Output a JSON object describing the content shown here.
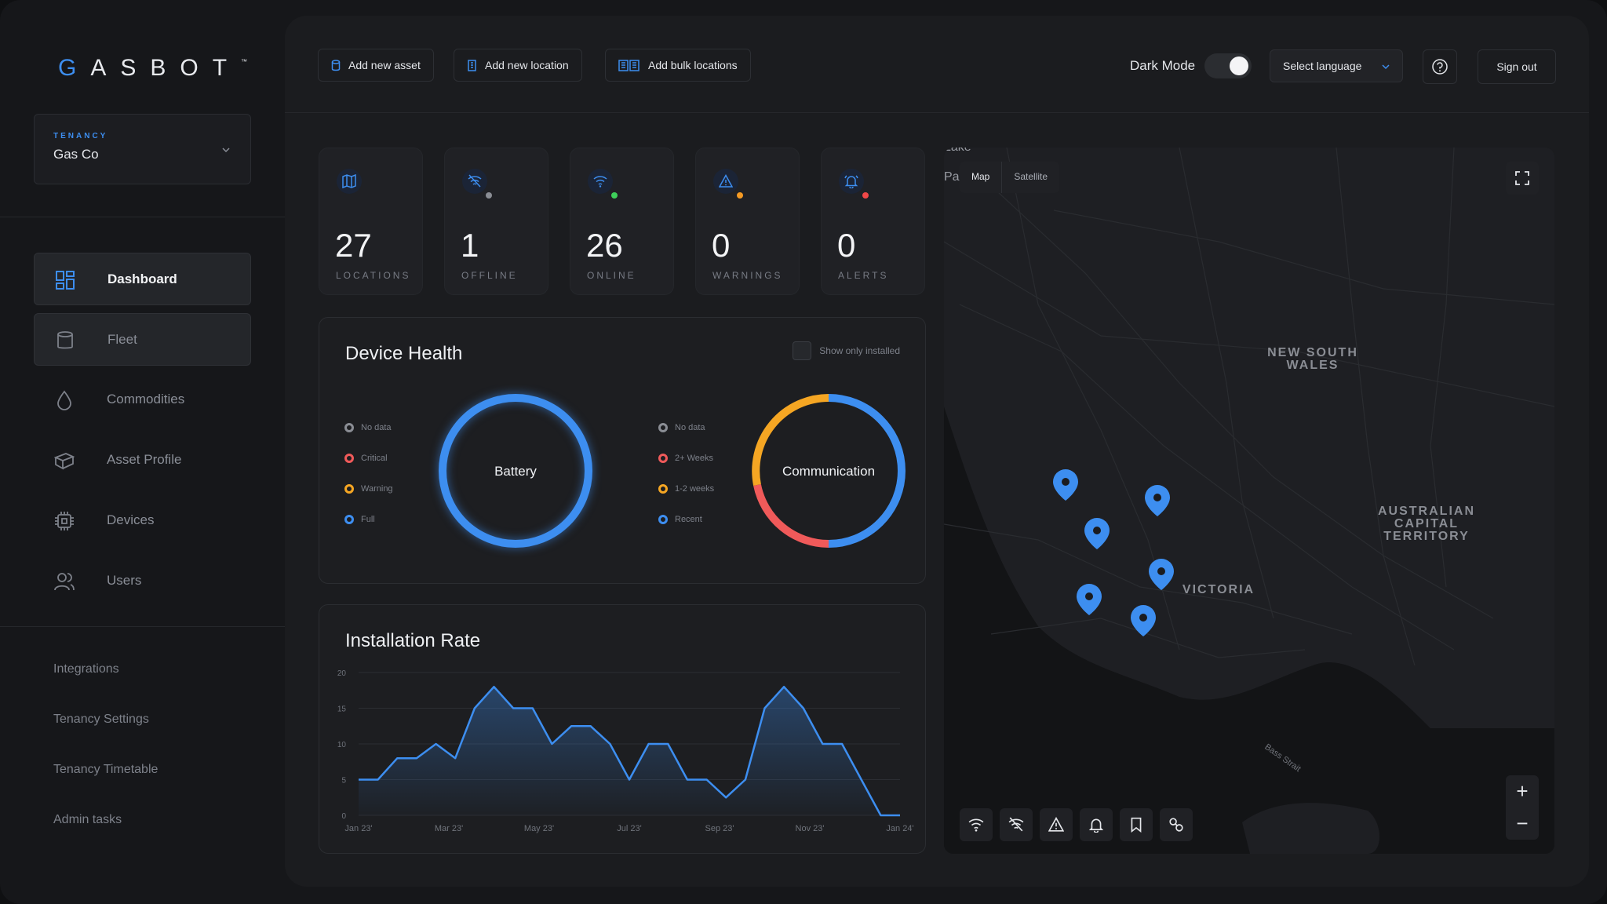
{
  "brand": {
    "logo_text": "GASBOT",
    "tm": "™",
    "accent": "#3d8ef0"
  },
  "tenancy": {
    "label": "TENANCY",
    "value": "Gas Co"
  },
  "nav": [
    {
      "label": "Dashboard",
      "icon": "grid-icon"
    },
    {
      "label": "Fleet",
      "icon": "cylinder-icon"
    },
    {
      "label": "Commodities",
      "icon": "drop-icon"
    },
    {
      "label": "Asset Profile",
      "icon": "box-icon"
    },
    {
      "label": "Devices",
      "icon": "chip-icon"
    },
    {
      "label": "Users",
      "icon": "users-icon"
    }
  ],
  "links": [
    "Integrations",
    "Tenancy Settings",
    "Tenancy Timetable",
    "Admin tasks"
  ],
  "toolbar": {
    "add_asset": "Add new asset",
    "add_location": "Add new location",
    "add_bulk": "Add bulk locations",
    "dark_mode": "Dark Mode",
    "dark_mode_on": true,
    "language": "Select language",
    "sign_out": "Sign out"
  },
  "stats": [
    {
      "value": "27",
      "label": "LOCATIONS",
      "icon": "map-icon",
      "dot": ""
    },
    {
      "value": "1",
      "label": "OFFLINE",
      "icon": "wifi-off-icon",
      "dot": "#8a8d94"
    },
    {
      "value": "26",
      "label": "ONLINE",
      "icon": "wifi-icon",
      "dot": "#3ecf5a"
    },
    {
      "value": "0",
      "label": "WARNINGS",
      "icon": "warning-icon",
      "dot": "#f59a23"
    },
    {
      "value": "0",
      "label": "ALERTS",
      "icon": "bell-icon",
      "dot": "#f04848"
    }
  ],
  "device_health": {
    "title": "Device Health",
    "show_installed": "Show  only installed",
    "battery": {
      "label": "Battery",
      "legend": [
        {
          "label": "No data",
          "color": "#8a8d94"
        },
        {
          "label": "Critical",
          "color": "#f05a5a"
        },
        {
          "label": "Warning",
          "color": "#f5a623"
        },
        {
          "label": "Full",
          "color": "#3d8ef0"
        }
      ]
    },
    "communication": {
      "label": "Communication",
      "legend": [
        {
          "label": "No data",
          "color": "#8a8d94"
        },
        {
          "label": "2+ Weeks",
          "color": "#f05a5a"
        },
        {
          "label": "1-2 weeks",
          "color": "#f5a623"
        },
        {
          "label": "Recent",
          "color": "#3d8ef0"
        }
      ]
    }
  },
  "chart_data": {
    "type": "area",
    "title": "Installation Rate",
    "ylim": [
      0,
      20
    ],
    "yticks": [
      0,
      5,
      10,
      15,
      20
    ],
    "xtick_labels": [
      "Jan 23'",
      "Mar 23'",
      "May 23'",
      "Jul 23'",
      "Sep 23'",
      "Nov 23'",
      "Jan 24'"
    ],
    "values": [
      5,
      5,
      8,
      8,
      10,
      8,
      15,
      18,
      15,
      15,
      10,
      12.5,
      12.5,
      10,
      5,
      10,
      10,
      5,
      5,
      2.5,
      5,
      15,
      18,
      15,
      10,
      10,
      5,
      0,
      0
    ],
    "color": "#3d8ef0"
  },
  "map": {
    "mode_map": "Map",
    "mode_satellite": "Satellite",
    "labels": {
      "nsw": "NEW SOUTH\nWALES",
      "act": "AUSTRALIAN\nCAPITAL\nTERRITORY",
      "vic": "VICTORIA",
      "bass": "Bass Strait",
      "lake": "Lake",
      "pa": "Pa"
    },
    "tools": [
      "wifi-icon",
      "wifi-off-icon",
      "warning-icon",
      "bell-icon",
      "bookmark-icon",
      "link-icon"
    ],
    "zoom_in": "+",
    "zoom_out": "−"
  }
}
